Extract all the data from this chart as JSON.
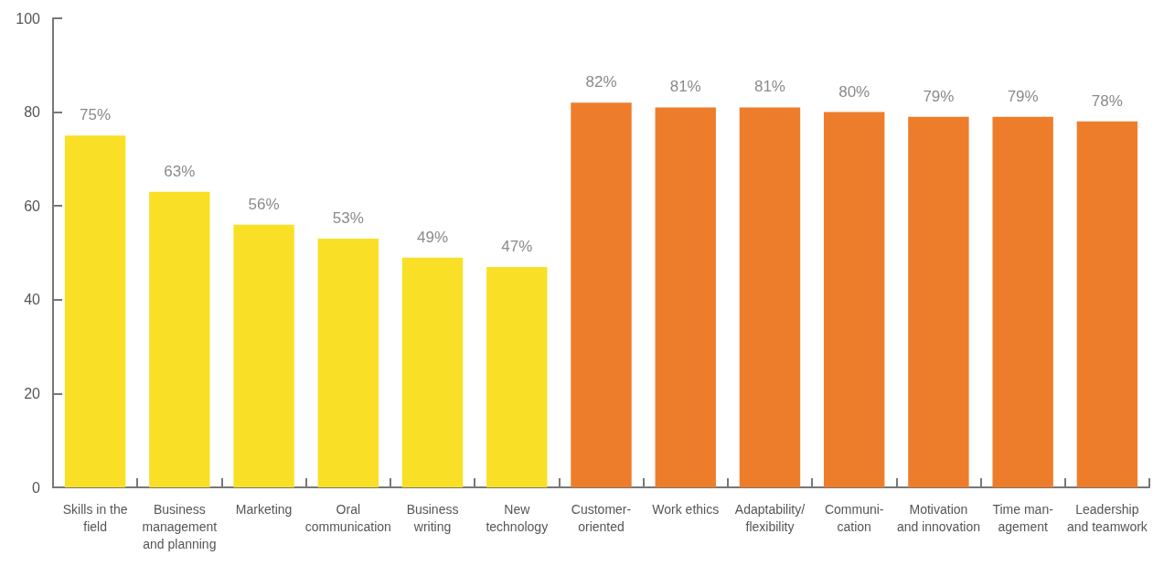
{
  "chart_data": {
    "type": "bar",
    "categories": [
      "Skills in the\nfield",
      "Business\nmanagement\nand planning",
      "Marketing",
      "Oral\ncommunication",
      "Business\nwriting",
      "New\ntechnology",
      "Customer-\noriented",
      "Work ethics",
      "Adaptability/\nflexibility",
      "Communi-\ncation",
      "Motivation\nand innovation",
      "Time man-\nagement",
      "Leadership\nand teamwork"
    ],
    "values": [
      75,
      63,
      56,
      53,
      49,
      47,
      82,
      81,
      81,
      80,
      79,
      79,
      78
    ],
    "colors": [
      "#f9e027",
      "#f9e027",
      "#f9e027",
      "#f9e027",
      "#f9e027",
      "#f9e027",
      "#ee7d2b",
      "#ee7d2b",
      "#ee7d2b",
      "#ee7d2b",
      "#ee7d2b",
      "#ee7d2b",
      "#ee7d2b"
    ],
    "value_labels": [
      "75%",
      "63%",
      "56%",
      "53%",
      "49%",
      "47%",
      "82%",
      "81%",
      "81%",
      "80%",
      "79%",
      "79%",
      "78%"
    ],
    "ylim": [
      0,
      100
    ],
    "yticks": [
      0,
      20,
      40,
      60,
      80,
      100
    ],
    "grid": false
  }
}
